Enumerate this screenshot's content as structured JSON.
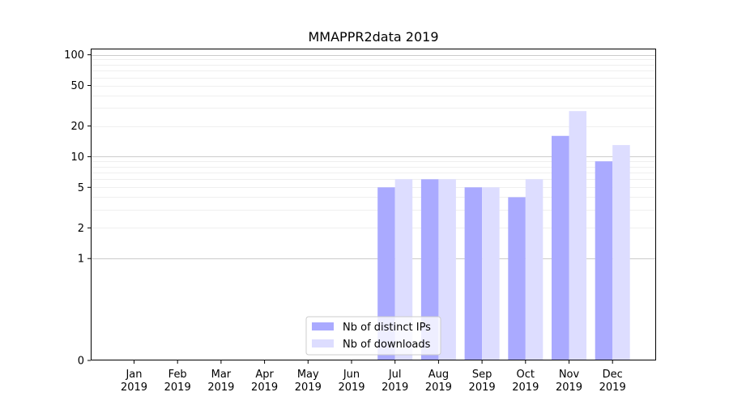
{
  "chart_data": {
    "type": "bar",
    "title": "MMAPPR2data 2019",
    "xlabel": "",
    "ylabel": "",
    "yscale": "symlog",
    "ylim": [
      0,
      115
    ],
    "grid": "horizontal",
    "legend_position": "bottom-center",
    "categories": [
      "Jan\n2019",
      "Feb\n2019",
      "Mar\n2019",
      "Apr\n2019",
      "May\n2019",
      "Jun\n2019",
      "Jul\n2019",
      "Aug\n2019",
      "Sep\n2019",
      "Oct\n2019",
      "Nov\n2019",
      "Dec\n2019"
    ],
    "category_month": [
      "Jan",
      "Feb",
      "Mar",
      "Apr",
      "May",
      "Jun",
      "Jul",
      "Aug",
      "Sep",
      "Oct",
      "Nov",
      "Dec"
    ],
    "category_year": "2019",
    "yticks": [
      0,
      1,
      2,
      5,
      10,
      20,
      50,
      100
    ],
    "series": [
      {
        "name": "Nb of distinct IPs",
        "color": "#aaaaff",
        "values": [
          0,
          0,
          0,
          0,
          0,
          0,
          5,
          6,
          5,
          4,
          16,
          9
        ]
      },
      {
        "name": "Nb of downloads",
        "color": "#ddddff",
        "values": [
          0,
          0,
          0,
          0,
          0,
          0,
          6,
          6,
          5,
          6,
          28,
          13
        ]
      }
    ]
  }
}
